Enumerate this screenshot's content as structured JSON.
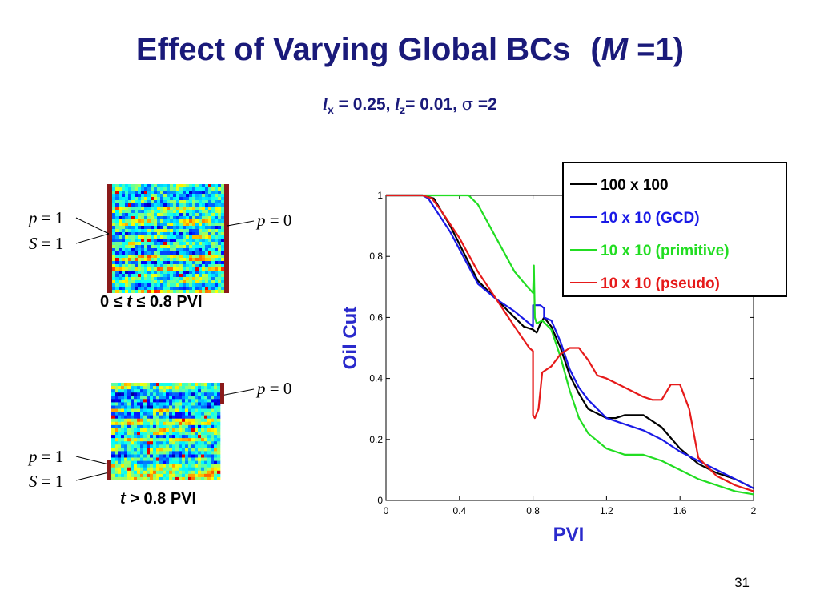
{
  "slide": {
    "title_prefix": "Effect of Varying Global BCs",
    "title_open": "(",
    "title_var": "M",
    "title_rest": " =1)",
    "subtitle": {
      "lx_var": "l",
      "lx_sub": "x",
      "lx_val": " = 0.25, ",
      "lz_var": "l",
      "lz_sub": "z",
      "lz_val": "= 0.01, ",
      "sigma_sym": "σ",
      "sigma_val": " =2"
    },
    "page_number": "31",
    "colors": {
      "title": "#1a1a7a",
      "axis_title": "#2a2acc",
      "boundary": "#8b1a1a"
    }
  },
  "panel_top": {
    "left_p_var": "p",
    "left_p_val": " = 1",
    "left_s_var": "S",
    "left_s_val": " = 1",
    "right_p_var": "p",
    "right_p_val": " = 0",
    "caption_a": "0 ≤ ",
    "caption_var": "t",
    "caption_b": " ≤ 0.8 PVI"
  },
  "panel_bottom": {
    "right_p_var": "p",
    "right_p_val": " = 0",
    "left_p_var": "p",
    "left_p_val": " = 1",
    "left_s_var": "S",
    "left_s_val": " = 1",
    "caption_var": "t",
    "caption_b": " > 0.8 PVI"
  },
  "chart_data": {
    "type": "line",
    "xlabel": "PVI",
    "ylabel": "Oil Cut",
    "xlim": [
      0,
      2
    ],
    "ylim": [
      0,
      1
    ],
    "xticks": [
      0,
      0.4,
      0.8,
      1.2,
      1.6,
      2
    ],
    "xtick_labels": [
      "0",
      "0.4",
      "0.8",
      "1.2",
      "1.6",
      "2"
    ],
    "yticks": [
      0,
      0.2,
      0.4,
      0.6,
      0.8,
      1
    ],
    "ytick_labels": [
      "0",
      "0.2",
      "0.4",
      "0.6",
      "0.8",
      "1"
    ],
    "grid": false,
    "legend_position": "top-right",
    "series": [
      {
        "name": "100 x 100",
        "color": "#000000",
        "x": [
          0,
          0.2,
          0.26,
          0.35,
          0.5,
          0.65,
          0.75,
          0.8,
          0.82,
          0.84,
          0.86,
          0.9,
          0.95,
          1.0,
          1.05,
          1.1,
          1.2,
          1.25,
          1.3,
          1.4,
          1.5,
          1.6,
          1.7,
          1.8,
          1.9,
          2.0
        ],
        "y": [
          1,
          1,
          0.99,
          0.9,
          0.72,
          0.63,
          0.57,
          0.56,
          0.55,
          0.58,
          0.6,
          0.57,
          0.5,
          0.41,
          0.35,
          0.3,
          0.27,
          0.27,
          0.28,
          0.28,
          0.24,
          0.17,
          0.12,
          0.09,
          0.07,
          0.04
        ]
      },
      {
        "name": "10 x 10 (GCD)",
        "color": "#1a1ae6",
        "x": [
          0,
          0.2,
          0.23,
          0.35,
          0.5,
          0.6,
          0.7,
          0.78,
          0.8,
          0.8,
          0.84,
          0.86,
          0.86,
          0.9,
          0.95,
          1.0,
          1.05,
          1.1,
          1.2,
          1.3,
          1.4,
          1.5,
          1.6,
          1.7,
          1.8,
          1.9,
          2.0
        ],
        "y": [
          1,
          1,
          0.99,
          0.88,
          0.71,
          0.66,
          0.62,
          0.58,
          0.57,
          0.64,
          0.64,
          0.63,
          0.6,
          0.59,
          0.52,
          0.43,
          0.37,
          0.33,
          0.27,
          0.25,
          0.23,
          0.2,
          0.16,
          0.13,
          0.1,
          0.07,
          0.04
        ]
      },
      {
        "name": "10 x 10 (primitive)",
        "color": "#22dd22",
        "x": [
          0,
          0.45,
          0.5,
          0.6,
          0.7,
          0.77,
          0.8,
          0.805,
          0.81,
          0.82,
          0.85,
          0.9,
          0.95,
          1.0,
          1.05,
          1.1,
          1.2,
          1.3,
          1.4,
          1.5,
          1.6,
          1.7,
          1.8,
          1.9,
          2.0
        ],
        "y": [
          1,
          1,
          0.97,
          0.86,
          0.75,
          0.7,
          0.68,
          0.77,
          0.6,
          0.58,
          0.59,
          0.56,
          0.47,
          0.36,
          0.27,
          0.22,
          0.17,
          0.15,
          0.15,
          0.13,
          0.1,
          0.07,
          0.05,
          0.03,
          0.02
        ]
      },
      {
        "name": "10 x 10 (pseudo)",
        "color": "#e61a1a",
        "x": [
          0,
          0.2,
          0.25,
          0.3,
          0.4,
          0.5,
          0.6,
          0.7,
          0.78,
          0.8,
          0.8,
          0.81,
          0.83,
          0.85,
          0.9,
          0.95,
          1.0,
          1.05,
          1.1,
          1.15,
          1.2,
          1.3,
          1.4,
          1.45,
          1.5,
          1.55,
          1.6,
          1.65,
          1.7,
          1.8,
          1.9,
          2.0
        ],
        "y": [
          1,
          1,
          0.99,
          0.95,
          0.86,
          0.75,
          0.66,
          0.57,
          0.5,
          0.49,
          0.28,
          0.27,
          0.3,
          0.42,
          0.44,
          0.48,
          0.5,
          0.5,
          0.46,
          0.41,
          0.4,
          0.37,
          0.34,
          0.33,
          0.33,
          0.38,
          0.38,
          0.3,
          0.14,
          0.08,
          0.05,
          0.03
        ]
      }
    ]
  }
}
